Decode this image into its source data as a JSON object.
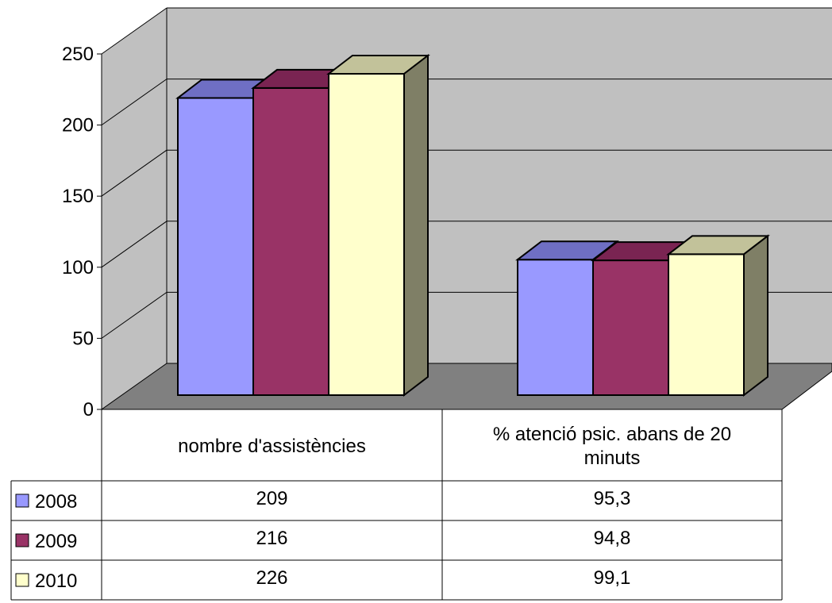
{
  "chart_data": {
    "type": "bar",
    "categories": [
      "nombre d'assistències",
      "% atenció psic. abans de 20 minuts"
    ],
    "category_lines": [
      [
        "nombre d'assistències"
      ],
      [
        "% atenció psic. abans de 20",
        "minuts"
      ]
    ],
    "series": [
      {
        "name": "2008",
        "values": [
          209,
          95.3
        ],
        "labels": [
          "209",
          "95,3"
        ],
        "color": "#9999ff",
        "top_color": "#6f6fc4",
        "side_color": "#5b5bb0"
      },
      {
        "name": "2009",
        "values": [
          216,
          94.8
        ],
        "labels": [
          "216",
          "94,8"
        ],
        "color": "#993366",
        "top_color": "#7a2452",
        "side_color": "#6e1f48"
      },
      {
        "name": "2010",
        "values": [
          226,
          99.1
        ],
        "labels": [
          "226",
          "99,1"
        ],
        "color": "#ffffcc",
        "top_color": "#c2c29a",
        "side_color": "#7f7f66"
      }
    ],
    "ylim": [
      0,
      250
    ],
    "yticks": [
      0,
      50,
      100,
      150,
      200,
      250
    ],
    "grid": true,
    "legend": "data-table-left",
    "wall_color": "#c0c0c0",
    "floor_color": "#808080"
  }
}
